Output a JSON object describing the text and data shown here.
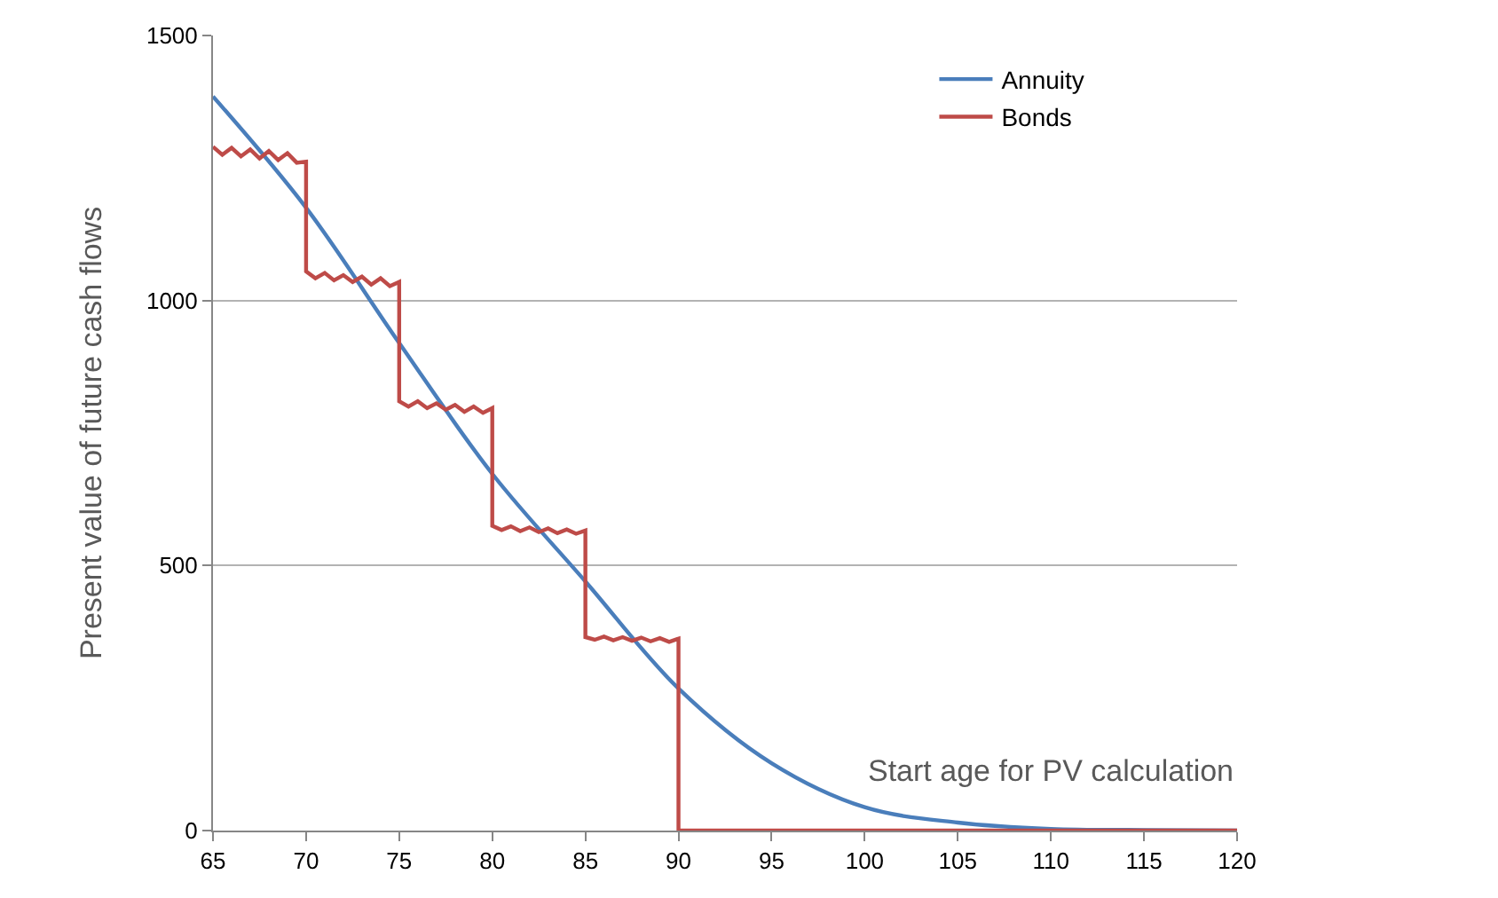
{
  "chart_data": {
    "type": "line",
    "xlabel": "Start age for PV calculation",
    "ylabel": "Present value of future cash flows",
    "xlim": [
      65,
      120
    ],
    "xticks": [
      65,
      70,
      75,
      80,
      85,
      90,
      95,
      100,
      105,
      110,
      115,
      120
    ],
    "ylim": [
      0,
      1500
    ],
    "yticks": [
      0,
      500,
      1000,
      1500
    ],
    "grid": "y",
    "legend": "top right",
    "marker": "none",
    "line_style": "solid",
    "series": [
      {
        "name": "Annuity",
        "color": "#4a7ebb",
        "x": [
          65,
          70,
          75,
          80,
          85,
          90,
          95,
          100,
          105,
          110,
          115,
          120
        ],
        "values": [
          1385,
          1175,
          920,
          673,
          470,
          268,
          127,
          44,
          15,
          3,
          1,
          0
        ]
      },
      {
        "name": "Bonds",
        "color": "#be4b48",
        "x": [
          65,
          65.5,
          66,
          66.5,
          67,
          67.5,
          68,
          68.5,
          69,
          69.5,
          70,
          70,
          70.5,
          71,
          71.5,
          72,
          72.5,
          73,
          73.5,
          74,
          74.5,
          75,
          75,
          75.5,
          76,
          76.5,
          77,
          77.5,
          78,
          78.5,
          79,
          79.5,
          80,
          80,
          80.5,
          81,
          81.5,
          82,
          82.5,
          83,
          83.5,
          84,
          84.5,
          85,
          85,
          85.5,
          86,
          86.5,
          87,
          87.5,
          88,
          88.5,
          89,
          89.5,
          90,
          90,
          120
        ],
        "values": [
          1290,
          1275,
          1288,
          1272,
          1285,
          1268,
          1282,
          1265,
          1278,
          1260,
          1262,
          1055,
          1042,
          1052,
          1038,
          1048,
          1035,
          1045,
          1030,
          1042,
          1027,
          1035,
          810,
          800,
          810,
          797,
          806,
          794,
          803,
          790,
          800,
          788,
          797,
          575,
          567,
          574,
          565,
          572,
          563,
          570,
          561,
          568,
          560,
          566,
          365,
          360,
          366,
          359,
          365,
          358,
          364,
          357,
          363,
          356,
          362,
          0,
          0
        ]
      }
    ]
  }
}
